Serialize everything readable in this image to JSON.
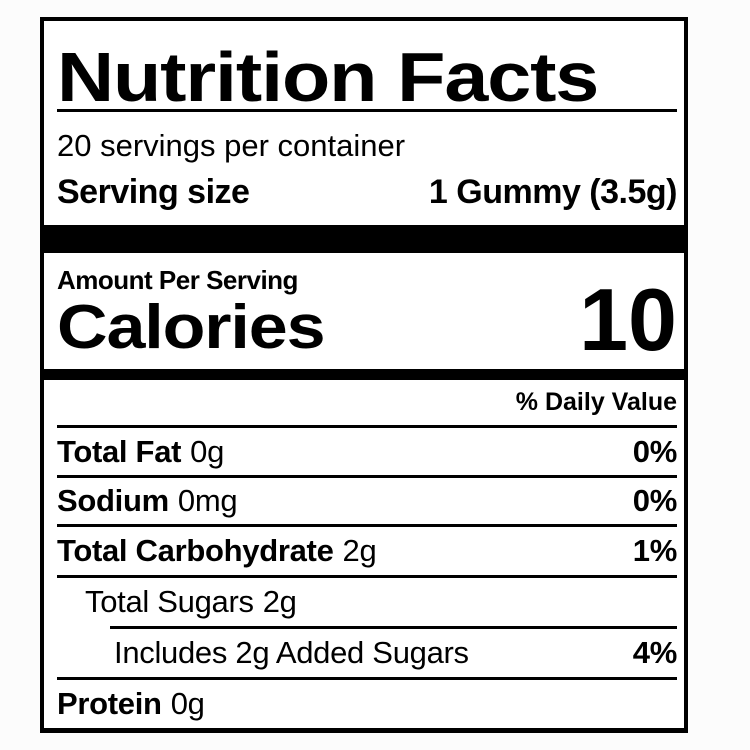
{
  "label": {
    "title": "Nutrition Facts",
    "servings_per_container": "20 servings per container",
    "serving_size": {
      "label": "Serving size",
      "value": "1 Gummy (3.5g)"
    },
    "amount_per_serving": "Amount Per Serving",
    "calories": {
      "label": "Calories",
      "value": "10"
    },
    "daily_value_header": "% Daily Value",
    "rows": [
      {
        "name": "Total Fat",
        "amount": "0g",
        "daily_value": "0%"
      },
      {
        "name": "Sodium",
        "amount": "0mg",
        "daily_value": "0%"
      },
      {
        "name": "Total Carbohydrate",
        "amount": "2g",
        "daily_value": "1%"
      },
      {
        "name": "Total Sugars",
        "amount": "2g",
        "daily_value": ""
      },
      {
        "name": "Includes 2g Added Sugars",
        "amount": "",
        "daily_value": "4%"
      },
      {
        "name": "Protein",
        "amount": "0g",
        "daily_value": ""
      }
    ],
    "colors": {
      "text": "#000000",
      "label_background": "#ffffff",
      "page_background": "#fcfcfc"
    }
  }
}
